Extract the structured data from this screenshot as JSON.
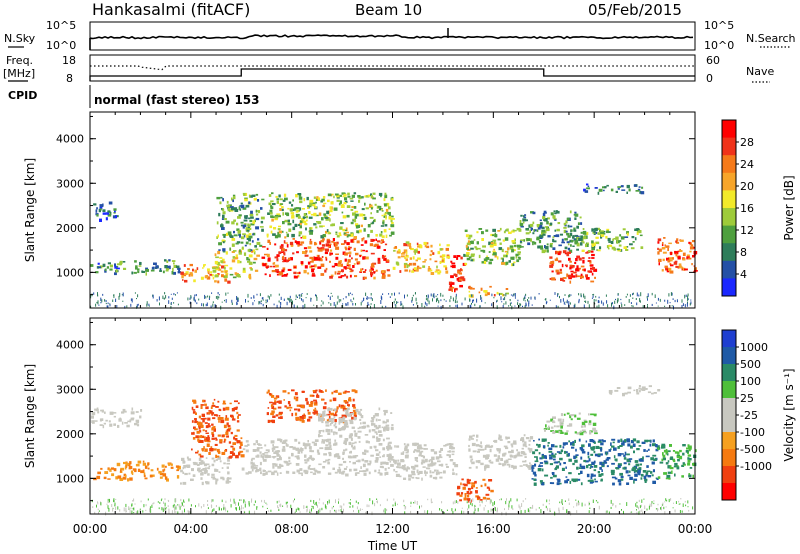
{
  "header": {
    "station": "Hankasalmi (fitACF)",
    "beam": "Beam 10",
    "date": "05/Feb/2015"
  },
  "status_panels": {
    "nsky_label": "N.Sky",
    "nsky_ticks": [
      "10^5",
      "10^0"
    ],
    "nsearch_label": "N.Search",
    "nsearch_ticks": [
      "10^5",
      "10^0"
    ],
    "freq_label_1": "Freq.",
    "freq_label_2": "[MHz]",
    "freq_ticks": [
      "18",
      "8"
    ],
    "nave_label": "Nave",
    "nave_ticks": [
      "60",
      "0"
    ],
    "cpid_label": "CPID",
    "cpid_text": "normal (fast stereo) 153"
  },
  "colors": {
    "power": [
      "#1b28ff",
      "#2450a6",
      "#2e7d5a",
      "#4e9f3e",
      "#9ecb3a",
      "#f2ea2a",
      "#f7a52a",
      "#f57a1a",
      "#f0331a",
      "#ff0000"
    ],
    "velocity": [
      "#1f3fd0",
      "#1f5aa6",
      "#2a8a66",
      "#4fbf3a",
      "#c8c8c0",
      "#c8c8c0",
      "#f5a020",
      "#f57a10",
      "#f04010",
      "#ff0000"
    ],
    "ground_scatter": "#b8b8b0"
  },
  "chart_data": [
    {
      "type": "heatmap",
      "name": "power",
      "ylabel": "Slant Range [km]",
      "yticks": [
        "1000",
        "2000",
        "3000",
        "4000"
      ],
      "ylim": [
        200,
        4600
      ],
      "xticks": [
        "00:00",
        "04:00",
        "08:00",
        "12:00",
        "16:00",
        "20:00",
        "00:00"
      ],
      "xlim_hours": [
        0,
        24
      ],
      "colorbar_label": "Power [dB]",
      "colorbar_ticks": [
        "4",
        "8",
        "12",
        "16",
        "20",
        "24",
        "28"
      ],
      "colorbar_range": [
        0,
        32
      ],
      "bands": [
        {
          "t0": 0.0,
          "t1": 1.2,
          "r0": 1000,
          "r1": 1250,
          "v": 8
        },
        {
          "t0": 0.0,
          "t1": 1.0,
          "r0": 2200,
          "r1": 2600,
          "v": 6
        },
        {
          "t0": 1.0,
          "t1": 3.5,
          "r0": 1000,
          "r1": 1300,
          "v": 10
        },
        {
          "t0": 3.5,
          "t1": 5.5,
          "r0": 800,
          "r1": 1200,
          "v": 22
        },
        {
          "t0": 4.8,
          "t1": 6.6,
          "r0": 900,
          "r1": 1500,
          "v": 17
        },
        {
          "t0": 5.0,
          "t1": 6.8,
          "r0": 1500,
          "r1": 2800,
          "v": 11
        },
        {
          "t0": 6.8,
          "t1": 11.8,
          "r0": 900,
          "r1": 1800,
          "v": 27
        },
        {
          "t0": 7.0,
          "t1": 12.0,
          "r0": 1800,
          "r1": 2800,
          "v": 14
        },
        {
          "t0": 12.0,
          "t1": 14.2,
          "r0": 1000,
          "r1": 1700,
          "v": 21
        },
        {
          "t0": 14.2,
          "t1": 14.8,
          "r0": 600,
          "r1": 1400,
          "v": 28
        },
        {
          "t0": 14.8,
          "t1": 17.0,
          "r0": 1200,
          "r1": 2000,
          "v": 14
        },
        {
          "t0": 15.0,
          "t1": 16.6,
          "r0": 500,
          "r1": 700,
          "v": 20
        },
        {
          "t0": 17.0,
          "t1": 19.5,
          "r0": 1500,
          "r1": 2400,
          "v": 10
        },
        {
          "t0": 18.2,
          "t1": 20.0,
          "r0": 800,
          "r1": 1500,
          "v": 29
        },
        {
          "t0": 19.0,
          "t1": 22.0,
          "r0": 1500,
          "r1": 2000,
          "v": 12
        },
        {
          "t0": 22.5,
          "t1": 24.0,
          "r0": 1000,
          "r1": 1800,
          "v": 26
        },
        {
          "t0": 19.5,
          "t1": 22.0,
          "r0": 2800,
          "r1": 3000,
          "v": 6
        }
      ]
    },
    {
      "type": "heatmap",
      "name": "velocity",
      "ylabel": "Slant Range [km]",
      "yticks": [
        "1000",
        "2000",
        "3000",
        "4000"
      ],
      "ylim": [
        200,
        4600
      ],
      "xticks": [
        "00:00",
        "04:00",
        "08:00",
        "12:00",
        "16:00",
        "20:00",
        "00:00"
      ],
      "xlim_hours": [
        0,
        24
      ],
      "xlabel": "Time UT",
      "colorbar_label": "Velocity [m s⁻¹]",
      "colorbar_ticks": [
        "1000",
        "500",
        "100",
        "25",
        "-25",
        "-100",
        "-500",
        "-1000"
      ],
      "bands": [
        {
          "t0": 0.0,
          "t1": 1.2,
          "r0": 1000,
          "r1": 1250,
          "v": -100
        },
        {
          "t0": 0.0,
          "t1": 2.0,
          "r0": 2200,
          "r1": 2600,
          "v": 0
        },
        {
          "t0": 1.0,
          "t1": 3.5,
          "r0": 1000,
          "r1": 1400,
          "v": -100
        },
        {
          "t0": 3.5,
          "t1": 5.5,
          "r0": 900,
          "r1": 1500,
          "v": 0
        },
        {
          "t0": 4.0,
          "t1": 6.0,
          "r0": 1500,
          "r1": 2800,
          "v": -500
        },
        {
          "t0": 6.0,
          "t1": 12.0,
          "r0": 1100,
          "r1": 1900,
          "v": 0
        },
        {
          "t0": 7.0,
          "t1": 10.5,
          "r0": 2300,
          "r1": 3000,
          "v": -500
        },
        {
          "t0": 9.0,
          "t1": 12.0,
          "r0": 1900,
          "r1": 2600,
          "v": 0
        },
        {
          "t0": 12.0,
          "t1": 14.5,
          "r0": 1000,
          "r1": 1800,
          "v": 0
        },
        {
          "t0": 14.5,
          "t1": 16.0,
          "r0": 500,
          "r1": 1000,
          "v": -500
        },
        {
          "t0": 15.0,
          "t1": 17.5,
          "r0": 1200,
          "r1": 2000,
          "v": 0
        },
        {
          "t0": 17.5,
          "t1": 22.5,
          "r0": 900,
          "r1": 1900,
          "v": 500
        },
        {
          "t0": 18.0,
          "t1": 20.0,
          "r0": 2000,
          "r1": 2500,
          "v": 25
        },
        {
          "t0": 22.5,
          "t1": 24.0,
          "r0": 1000,
          "r1": 1800,
          "v": 100
        },
        {
          "t0": 20.5,
          "t1": 22.5,
          "r0": 2900,
          "r1": 3100,
          "v": 0
        }
      ]
    }
  ]
}
